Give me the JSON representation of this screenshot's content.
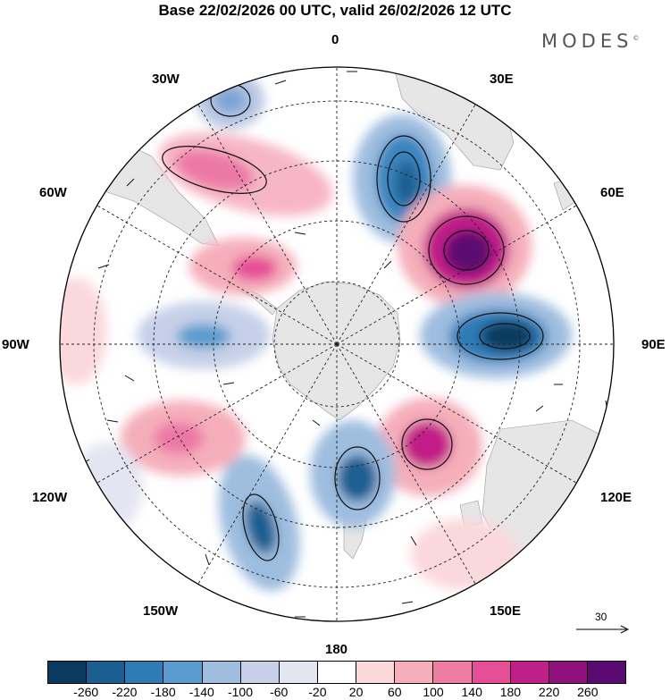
{
  "title": "Base 22/02/2026 00 UTC, valid 26/02/2026 12 UTC",
  "brand": "MODES",
  "brand_mark": "©",
  "longitude_labels": {
    "lon_0": "0",
    "lon_30e": "30E",
    "lon_60e": "60E",
    "lon_90e": "90E",
    "lon_120e": "120E",
    "lon_150e": "150E",
    "lon_180": "180",
    "lon_150w": "150W",
    "lon_120w": "120W",
    "lon_90w": "90W",
    "lon_60w": "60W",
    "lon_30w": "30W"
  },
  "reference_vector": "30",
  "colorbar": {
    "colors": [
      "#0b3a5e",
      "#1b5e91",
      "#2f7bb6",
      "#5a9ccd",
      "#9ebddf",
      "#c6d0e8",
      "#e4e5f2",
      "#ffffff",
      "#fbd8dc",
      "#f5aeba",
      "#ef7da2",
      "#e64e97",
      "#c11f88",
      "#8e117d",
      "#5a0a70"
    ],
    "ticks": [
      "-260",
      "-220",
      "-180",
      "-140",
      "-100",
      "-60",
      "-20",
      "20",
      "60",
      "100",
      "140",
      "180",
      "220",
      "260"
    ]
  },
  "anomaly_centers": [
    {
      "sign": "positive",
      "value": 150,
      "near": "60W"
    },
    {
      "sign": "negative",
      "value": -110,
      "near": "30W"
    },
    {
      "sign": "negative",
      "value": -200,
      "near": "0-30E"
    },
    {
      "sign": "positive",
      "value": 260,
      "near": "45E"
    },
    {
      "sign": "negative",
      "value": -250,
      "near": "80E"
    },
    {
      "sign": "positive",
      "value": 140,
      "near": "60W inner"
    },
    {
      "sign": "negative",
      "value": -120,
      "near": "90W"
    },
    {
      "sign": "positive",
      "value": 180,
      "near": "130E"
    },
    {
      "sign": "negative",
      "value": -200,
      "near": "165E"
    },
    {
      "sign": "negative",
      "value": -200,
      "near": "150W"
    },
    {
      "sign": "positive",
      "value": 140,
      "near": "120W"
    }
  ]
}
